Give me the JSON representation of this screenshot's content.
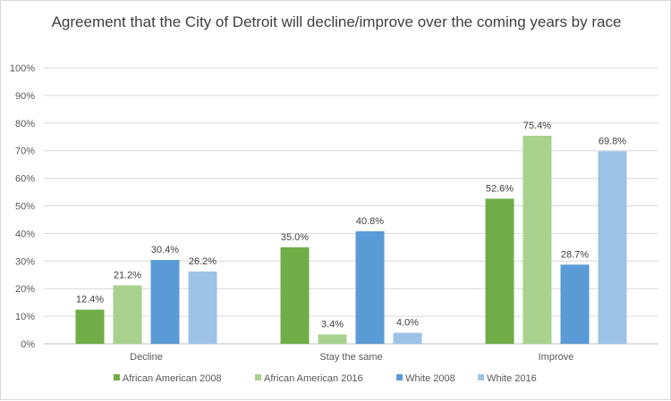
{
  "chart_data": {
    "type": "bar",
    "title": "Agreement that the City of Detroit will decline/improve over the coming years by race",
    "categories": [
      "Decline",
      "Stay the same",
      "Improve"
    ],
    "series": [
      {
        "name": "African American 2008",
        "color": "#70ad47",
        "values": [
          12.4,
          35.0,
          52.6
        ],
        "labels": [
          "12.4%",
          "35.0%",
          "52.6%"
        ]
      },
      {
        "name": "African American 2016",
        "color": "#a9d18e",
        "values": [
          21.2,
          3.4,
          75.4
        ],
        "labels": [
          "21.2%",
          "3.4%",
          "75.4%"
        ]
      },
      {
        "name": "White 2008",
        "color": "#5b9bd5",
        "values": [
          30.4,
          40.8,
          28.7
        ],
        "labels": [
          "30.4%",
          "40.8%",
          "28.7%"
        ]
      },
      {
        "name": "White 2016",
        "color": "#9dc3e6",
        "values": [
          26.2,
          4.0,
          69.8
        ],
        "labels": [
          "26.2%",
          "4.0%",
          "69.8%"
        ]
      }
    ],
    "ylim": [
      0,
      100
    ],
    "yticks": [
      "0%",
      "10%",
      "20%",
      "30%",
      "40%",
      "50%",
      "60%",
      "70%",
      "80%",
      "90%",
      "100%"
    ],
    "grid": true,
    "legend": "bottom"
  }
}
